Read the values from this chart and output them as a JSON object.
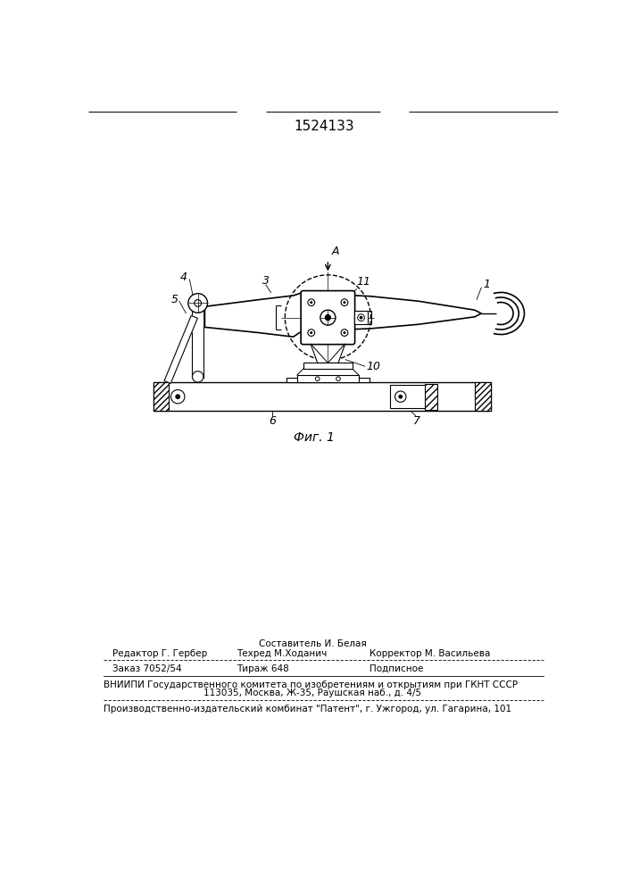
{
  "patent_number": "1524133",
  "fig_caption": "Фиг. 1",
  "footer": {
    "sestavitel_line": "Составитель И. Белая",
    "editor_line": "Редактор Г. Гербер",
    "tekhred_line": "Техред М.Ходанич",
    "korrektor_line": "Корректор М. Васильева",
    "zakaz_line": "Заказ 7052/54",
    "tirazh_line": "Тираж 648",
    "podpisnoe_line": "Подписное",
    "vniipи_line1": "ВНИИПИ Государственного комитета по изобретениям и открытиям при ГКНТ СССР",
    "vniipи_line2": "113035, Москва, Ж-35, Раушская наб., д. 4/5",
    "kombinat_line": "Производственно-издательский комбинат \"Патент\", г. Ужгород, ул. Гагарина, 101"
  },
  "background_color": "#ffffff"
}
